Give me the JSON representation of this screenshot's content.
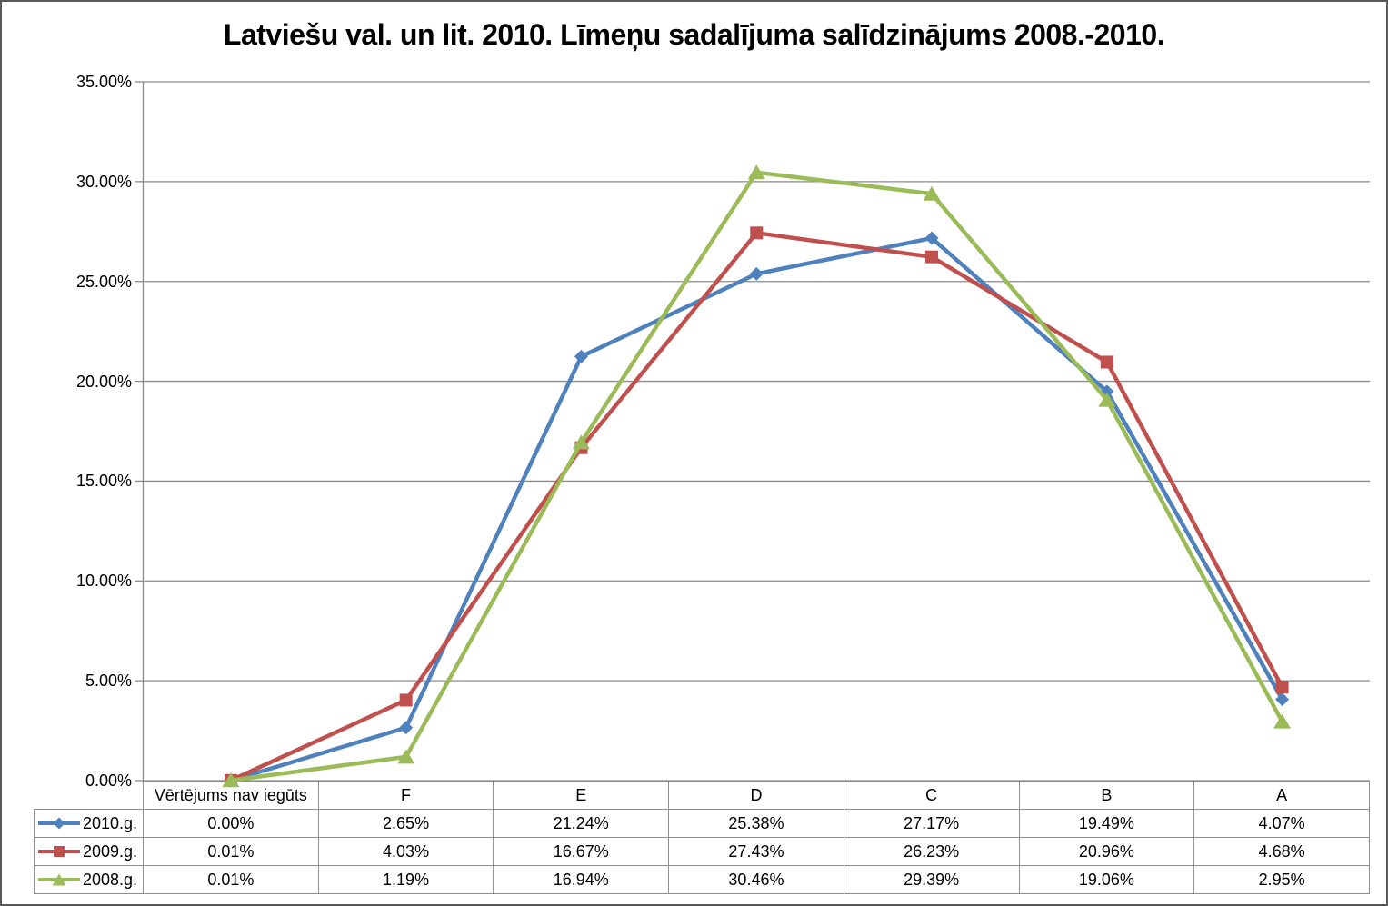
{
  "title": "Latviešu val. un lit. 2010. Līmeņu sadalījuma salīdzinājums 2008.-2010.",
  "chart_data": {
    "type": "line",
    "title": "Latviešu val. un lit. 2010. Līmeņu sadalījuma salīdzinājums 2008.-2010.",
    "categories": [
      "Vērtējums nav iegūts",
      "F",
      "E",
      "D",
      "C",
      "B",
      "A"
    ],
    "series": [
      {
        "name": "2010.g.",
        "marker": "diamond",
        "color": "#4F81BD",
        "values": [
          0.0,
          2.65,
          21.24,
          25.38,
          27.17,
          19.49,
          4.07
        ]
      },
      {
        "name": "2009.g.",
        "marker": "square",
        "color": "#C0504D",
        "values": [
          0.01,
          4.03,
          16.67,
          27.43,
          26.23,
          20.96,
          4.68
        ]
      },
      {
        "name": "2008.g.",
        "marker": "triangle",
        "color": "#9BBB59",
        "values": [
          0.01,
          1.19,
          16.94,
          30.46,
          29.39,
          19.06,
          2.95
        ]
      }
    ],
    "y_axis": {
      "min": 0,
      "max": 35,
      "step": 5,
      "tick_labels": [
        "0.00%",
        "5.00%",
        "10.00%",
        "15.00%",
        "20.00%",
        "25.00%",
        "30.00%",
        "35.00%"
      ]
    },
    "grid": true,
    "legend_position": "data-table-left",
    "value_format": "percent",
    "colors": {
      "gridline": "#8a8a8a",
      "axis": "#8a8a8a",
      "table_border": "#8e8e8e",
      "frame": "#595959"
    }
  },
  "table": {
    "rows": [
      {
        "label": "2010.g.",
        "values": [
          "0.00%",
          "2.65%",
          "21.24%",
          "25.38%",
          "27.17%",
          "19.49%",
          "4.07%"
        ]
      },
      {
        "label": "2009.g.",
        "values": [
          "0.01%",
          "4.03%",
          "16.67%",
          "27.43%",
          "26.23%",
          "20.96%",
          "4.68%"
        ]
      },
      {
        "label": "2008.g.",
        "values": [
          "0.01%",
          "1.19%",
          "16.94%",
          "30.46%",
          "29.39%",
          "19.06%",
          "2.95%"
        ]
      }
    ]
  }
}
